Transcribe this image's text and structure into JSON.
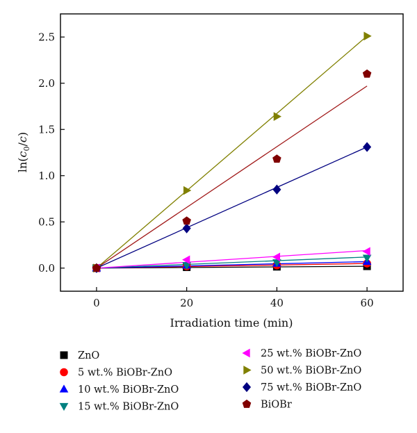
{
  "chart_data": {
    "type": "scatter",
    "xlabel": "Irradiation time (min)",
    "ylabel_parts": [
      "ln(",
      "c",
      "0",
      "/",
      "c",
      ")"
    ],
    "xlim": [
      -8,
      68
    ],
    "ylim": [
      -0.25,
      2.75
    ],
    "xticks": [
      "0",
      "20",
      "40",
      "60"
    ],
    "xtick_values": [
      0,
      20,
      40,
      60
    ],
    "yticks": [
      "0.0",
      "0.5",
      "1.0",
      "1.5",
      "2.0",
      "2.5"
    ],
    "ytick_values": [
      0.0,
      0.5,
      1.0,
      1.5,
      2.0,
      2.5
    ],
    "grid": false,
    "legend_placement": "below plot, two columns",
    "x": [
      0,
      20,
      40,
      60
    ],
    "series": [
      {
        "name": "ZnO",
        "marker": "square",
        "color": "#000000",
        "values": [
          0,
          0.01,
          0.015,
          0.02
        ],
        "fit_end": 0.02
      },
      {
        "name": "5 wt.% BiOBr-ZnO",
        "marker": "circle",
        "color": "#ff0000",
        "values": [
          0,
          0.02,
          0.03,
          0.05
        ],
        "fit_end": 0.05
      },
      {
        "name": "10 wt.% BiOBr-ZnO",
        "marker": "triangle-up",
        "color": "#0000ff",
        "values": [
          0,
          0.03,
          0.05,
          0.07
        ],
        "fit_end": 0.07
      },
      {
        "name": "15 wt.% BiOBr-ZnO",
        "marker": "triangle-down",
        "color": "#008080",
        "values": [
          0,
          0.03,
          0.06,
          0.11
        ],
        "fit_end": 0.12
      },
      {
        "name": "25 wt.% BiOBr-ZnO",
        "marker": "triangle-left",
        "color": "#ff00ff",
        "values": [
          0,
          0.09,
          0.12,
          0.18
        ],
        "fit_end": 0.19
      },
      {
        "name": "50 wt.% BiOBr-ZnO",
        "marker": "triangle-right",
        "color": "#808000",
        "values": [
          0,
          0.84,
          1.64,
          2.51
        ],
        "fit_end": 2.51
      },
      {
        "name": "75 wt.% BiOBr-ZnO",
        "marker": "diamond",
        "color": "#000080",
        "values": [
          0,
          0.43,
          0.85,
          1.31
        ],
        "fit_end": 1.31
      },
      {
        "name": "BiOBr",
        "marker": "pentagon",
        "color": "#800000",
        "fit_color": "#a01818",
        "values": [
          0,
          0.51,
          1.18,
          2.1
        ],
        "fit_end": 1.97
      }
    ]
  }
}
